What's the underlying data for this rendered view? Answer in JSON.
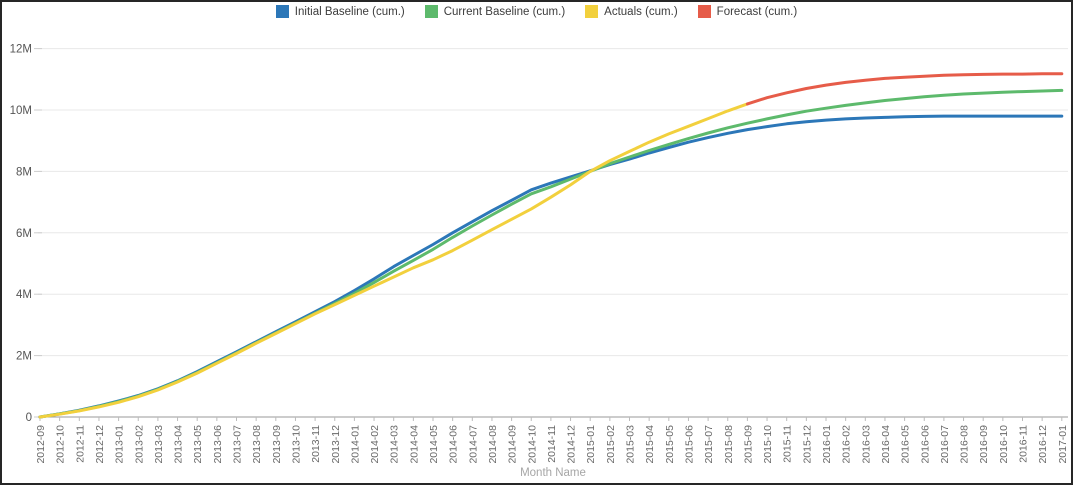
{
  "window": {
    "background": "#ffffff",
    "border_color": "#262626"
  },
  "legend": {
    "position": "top-center",
    "items": [
      {
        "label": "Initial Baseline (cum.)",
        "color": "#2c77b8"
      },
      {
        "label": "Current Baseline (cum.)",
        "color": "#5dba6c"
      },
      {
        "label": "Actuals (cum.)",
        "color": "#f2d03d"
      },
      {
        "label": "Forecast (cum.)",
        "color": "#e65c49"
      }
    ]
  },
  "axes": {
    "x_title": "Month Name",
    "y_tick_labels": [
      "0",
      "2M",
      "4M",
      "6M",
      "8M",
      "10M",
      "12M"
    ],
    "tick_label_color": "#696969",
    "y_label_color": "#555555",
    "x_title_color": "#a6a6a6",
    "gridline_color": "#e8e8e8",
    "axis_line_color": "#999999"
  },
  "chart_data": {
    "type": "line",
    "title": "",
    "xlabel": "Month Name",
    "ylabel": "",
    "unit": "millions",
    "ylim": [
      0,
      12
    ],
    "y_ticks": [
      0,
      2,
      4,
      6,
      8,
      10,
      12
    ],
    "grid": true,
    "legend_position": "top",
    "categories": [
      "2012-09",
      "2012-10",
      "2012-11",
      "2012-12",
      "2013-01",
      "2013-02",
      "2013-03",
      "2013-04",
      "2013-05",
      "2013-06",
      "2013-07",
      "2013-08",
      "2013-09",
      "2013-10",
      "2013-11",
      "2013-12",
      "2014-01",
      "2014-02",
      "2014-03",
      "2014-04",
      "2014-05",
      "2014-06",
      "2014-07",
      "2014-08",
      "2014-09",
      "2014-10",
      "2014-11",
      "2014-12",
      "2015-01",
      "2015-02",
      "2015-03",
      "2015-04",
      "2015-05",
      "2015-06",
      "2015-07",
      "2015-08",
      "2015-09",
      "2015-10",
      "2015-11",
      "2015-12",
      "2016-01",
      "2016-02",
      "2016-03",
      "2016-04",
      "2016-05",
      "2016-06",
      "2016-07",
      "2016-08",
      "2016-09",
      "2016-10",
      "2016-11",
      "2016-12",
      "2017-01"
    ],
    "series": [
      {
        "name": "Initial Baseline (cum.)",
        "color": "#2c77b8",
        "x_start_index": 0,
        "values": [
          0.0,
          0.1,
          0.22,
          0.36,
          0.52,
          0.7,
          0.92,
          1.18,
          1.48,
          1.8,
          2.12,
          2.45,
          2.78,
          3.1,
          3.43,
          3.76,
          4.12,
          4.5,
          4.9,
          5.26,
          5.62,
          6.0,
          6.36,
          6.72,
          7.06,
          7.4,
          7.62,
          7.82,
          8.02,
          8.22,
          8.4,
          8.6,
          8.78,
          8.95,
          9.1,
          9.24,
          9.36,
          9.46,
          9.55,
          9.62,
          9.67,
          9.71,
          9.74,
          9.76,
          9.78,
          9.79,
          9.8,
          9.8,
          9.8,
          9.8,
          9.8,
          9.8,
          9.8
        ]
      },
      {
        "name": "Current Baseline (cum.)",
        "color": "#5dba6c",
        "x_start_index": 0,
        "values": [
          0.0,
          0.1,
          0.21,
          0.35,
          0.5,
          0.68,
          0.9,
          1.16,
          1.45,
          1.77,
          2.09,
          2.42,
          2.74,
          3.06,
          3.38,
          3.7,
          4.03,
          4.38,
          4.75,
          5.1,
          5.46,
          5.85,
          6.22,
          6.58,
          6.93,
          7.27,
          7.5,
          7.75,
          8.0,
          8.25,
          8.47,
          8.68,
          8.88,
          9.07,
          9.25,
          9.42,
          9.57,
          9.71,
          9.84,
          9.96,
          10.06,
          10.15,
          10.23,
          10.31,
          10.37,
          10.43,
          10.48,
          10.52,
          10.55,
          10.58,
          10.6,
          10.62,
          10.64
        ]
      },
      {
        "name": "Actuals (cum.)",
        "color": "#f2d03d",
        "x_start_index": 0,
        "values": [
          0.0,
          0.09,
          0.2,
          0.33,
          0.48,
          0.66,
          0.88,
          1.14,
          1.43,
          1.75,
          2.07,
          2.4,
          2.72,
          3.04,
          3.36,
          3.66,
          3.96,
          4.26,
          4.56,
          4.86,
          5.12,
          5.42,
          5.76,
          6.1,
          6.44,
          6.78,
          7.16,
          7.56,
          8.0,
          8.35,
          8.65,
          8.95,
          9.22,
          9.47,
          9.72,
          9.97,
          10.2
        ]
      },
      {
        "name": "Forecast (cum.)",
        "color": "#e65c49",
        "x_start_index": 36,
        "values": [
          10.2,
          10.4,
          10.56,
          10.7,
          10.81,
          10.9,
          10.97,
          11.03,
          11.07,
          11.1,
          11.13,
          11.15,
          11.16,
          11.17,
          11.17,
          11.18,
          11.18
        ]
      }
    ]
  }
}
